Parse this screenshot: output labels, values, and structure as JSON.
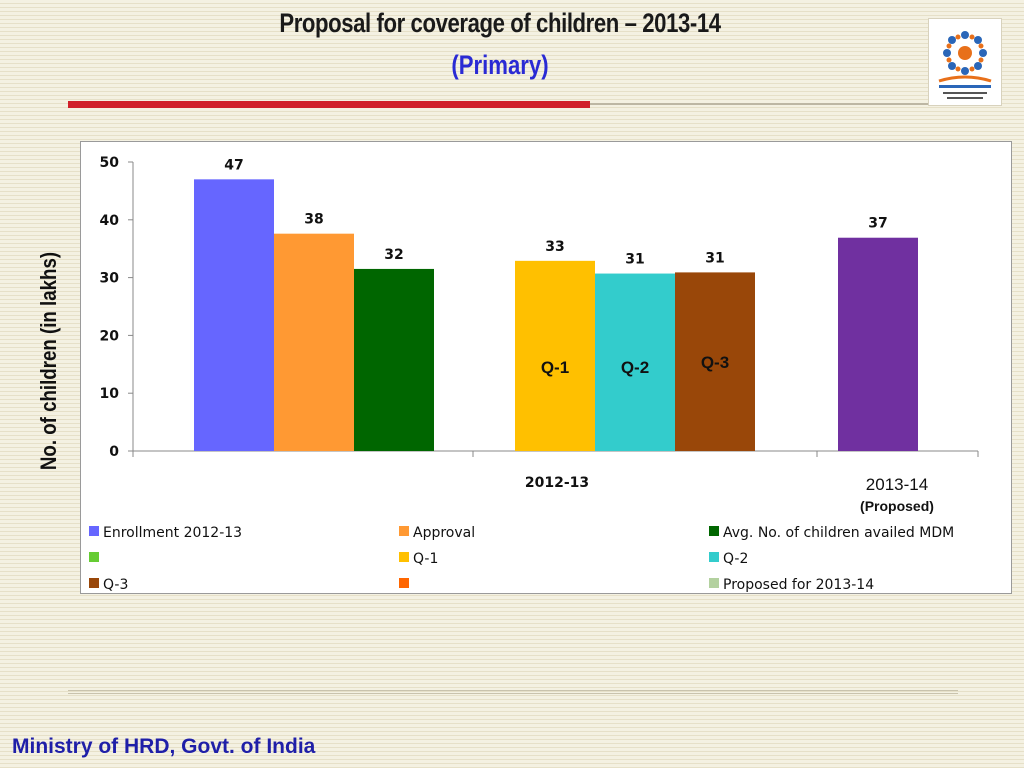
{
  "slide": {
    "title": "Proposal for coverage of children – 2013-14",
    "subtitle": "(Primary)",
    "footer": "Ministry of HRD, Govt. of India",
    "logo_icon": "mid-day-meal-logo"
  },
  "chart_data": {
    "type": "bar",
    "title": "",
    "ylabel": "No. of children (in lakhs)",
    "ylim": [
      0,
      50
    ],
    "yticks": [
      "0",
      "10",
      "20",
      "30",
      "40",
      "50"
    ],
    "grid": false,
    "groups": [
      {
        "label": "2012-13",
        "sublabel": "",
        "bars": [
          {
            "series": "Enrollment 2012-13",
            "value": 47,
            "label": "47",
            "color": "#6666ff",
            "inner_label": ""
          },
          {
            "series": "Approval",
            "value": 37.6,
            "label": "38",
            "color": "#ff9933",
            "inner_label": ""
          },
          {
            "series": "Avg. No. of children availed MDM",
            "value": 31.5,
            "label": "32",
            "color": "#006600",
            "inner_label": ""
          },
          {
            "series": "Q-1",
            "value": 32.9,
            "label": "33",
            "color": "#ffc000",
            "inner_label": "Q-1"
          },
          {
            "series": "Q-2",
            "value": 30.7,
            "label": "31",
            "color": "#33cccc",
            "inner_label": "Q-2"
          },
          {
            "series": "Q-3",
            "value": 30.9,
            "label": "31",
            "color": "#994709",
            "inner_label": "Q-3"
          }
        ]
      },
      {
        "label": "2013-14",
        "sublabel": "(Proposed)",
        "bars": [
          {
            "series": "Proposed for 2013-14",
            "value": 36.9,
            "label": "37",
            "color": "#7030a0",
            "inner_label": ""
          }
        ]
      }
    ],
    "legend": [
      {
        "name": "Enrollment 2012-13",
        "color": "#6666ff"
      },
      {
        "name": "Approval",
        "color": "#ff9933"
      },
      {
        "name": "Avg. No. of children availed MDM",
        "color": "#006600"
      },
      {
        "name": "",
        "color": "#66cc33"
      },
      {
        "name": "Q-1",
        "color": "#ffc000"
      },
      {
        "name": "Q-2",
        "color": "#33cccc"
      },
      {
        "name": "Q-3",
        "color": "#994709"
      },
      {
        "name": "",
        "color": "#ff6600"
      },
      {
        "name": "Proposed for 2013-14",
        "color": "#b3d19f"
      }
    ],
    "legend_position": "bottom"
  }
}
